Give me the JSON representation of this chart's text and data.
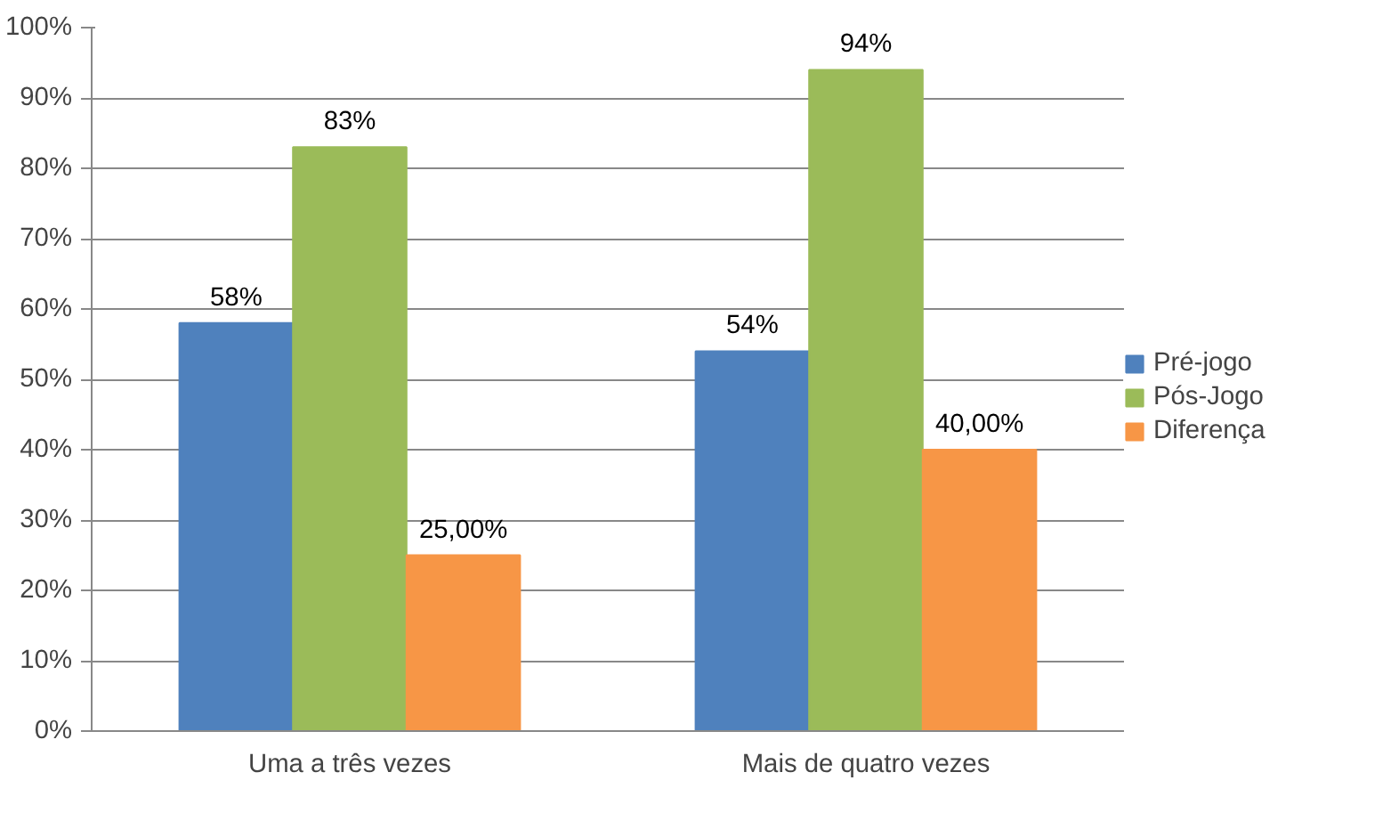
{
  "chart_data": {
    "type": "bar",
    "categories": [
      "Uma a três vezes",
      "Mais de quatro vezes"
    ],
    "series": [
      {
        "name": "Pré-jogo",
        "color": "#4f81bd",
        "values": [
          58,
          54
        ],
        "value_labels": [
          "58%",
          "54%"
        ]
      },
      {
        "name": "Pós-Jogo",
        "color": "#9bbb59",
        "values": [
          83,
          94
        ],
        "value_labels": [
          "83%",
          "94%"
        ]
      },
      {
        "name": "Diferença",
        "color": "#f79646",
        "values": [
          25,
          40
        ],
        "value_labels": [
          "25,00%",
          "40,00%"
        ]
      }
    ],
    "ylim": [
      0,
      100
    ],
    "yticks": [
      {
        "value": 0,
        "label": "0%"
      },
      {
        "value": 10,
        "label": "10%"
      },
      {
        "value": 20,
        "label": "20%"
      },
      {
        "value": 30,
        "label": "30%"
      },
      {
        "value": 40,
        "label": "40%"
      },
      {
        "value": 50,
        "label": "50%"
      },
      {
        "value": 60,
        "label": "60%"
      },
      {
        "value": 70,
        "label": "70%"
      },
      {
        "value": 80,
        "label": "80%"
      },
      {
        "value": 90,
        "label": "90%"
      },
      {
        "value": 100,
        "label": "100%"
      }
    ],
    "grid": "y",
    "legend": "right"
  }
}
